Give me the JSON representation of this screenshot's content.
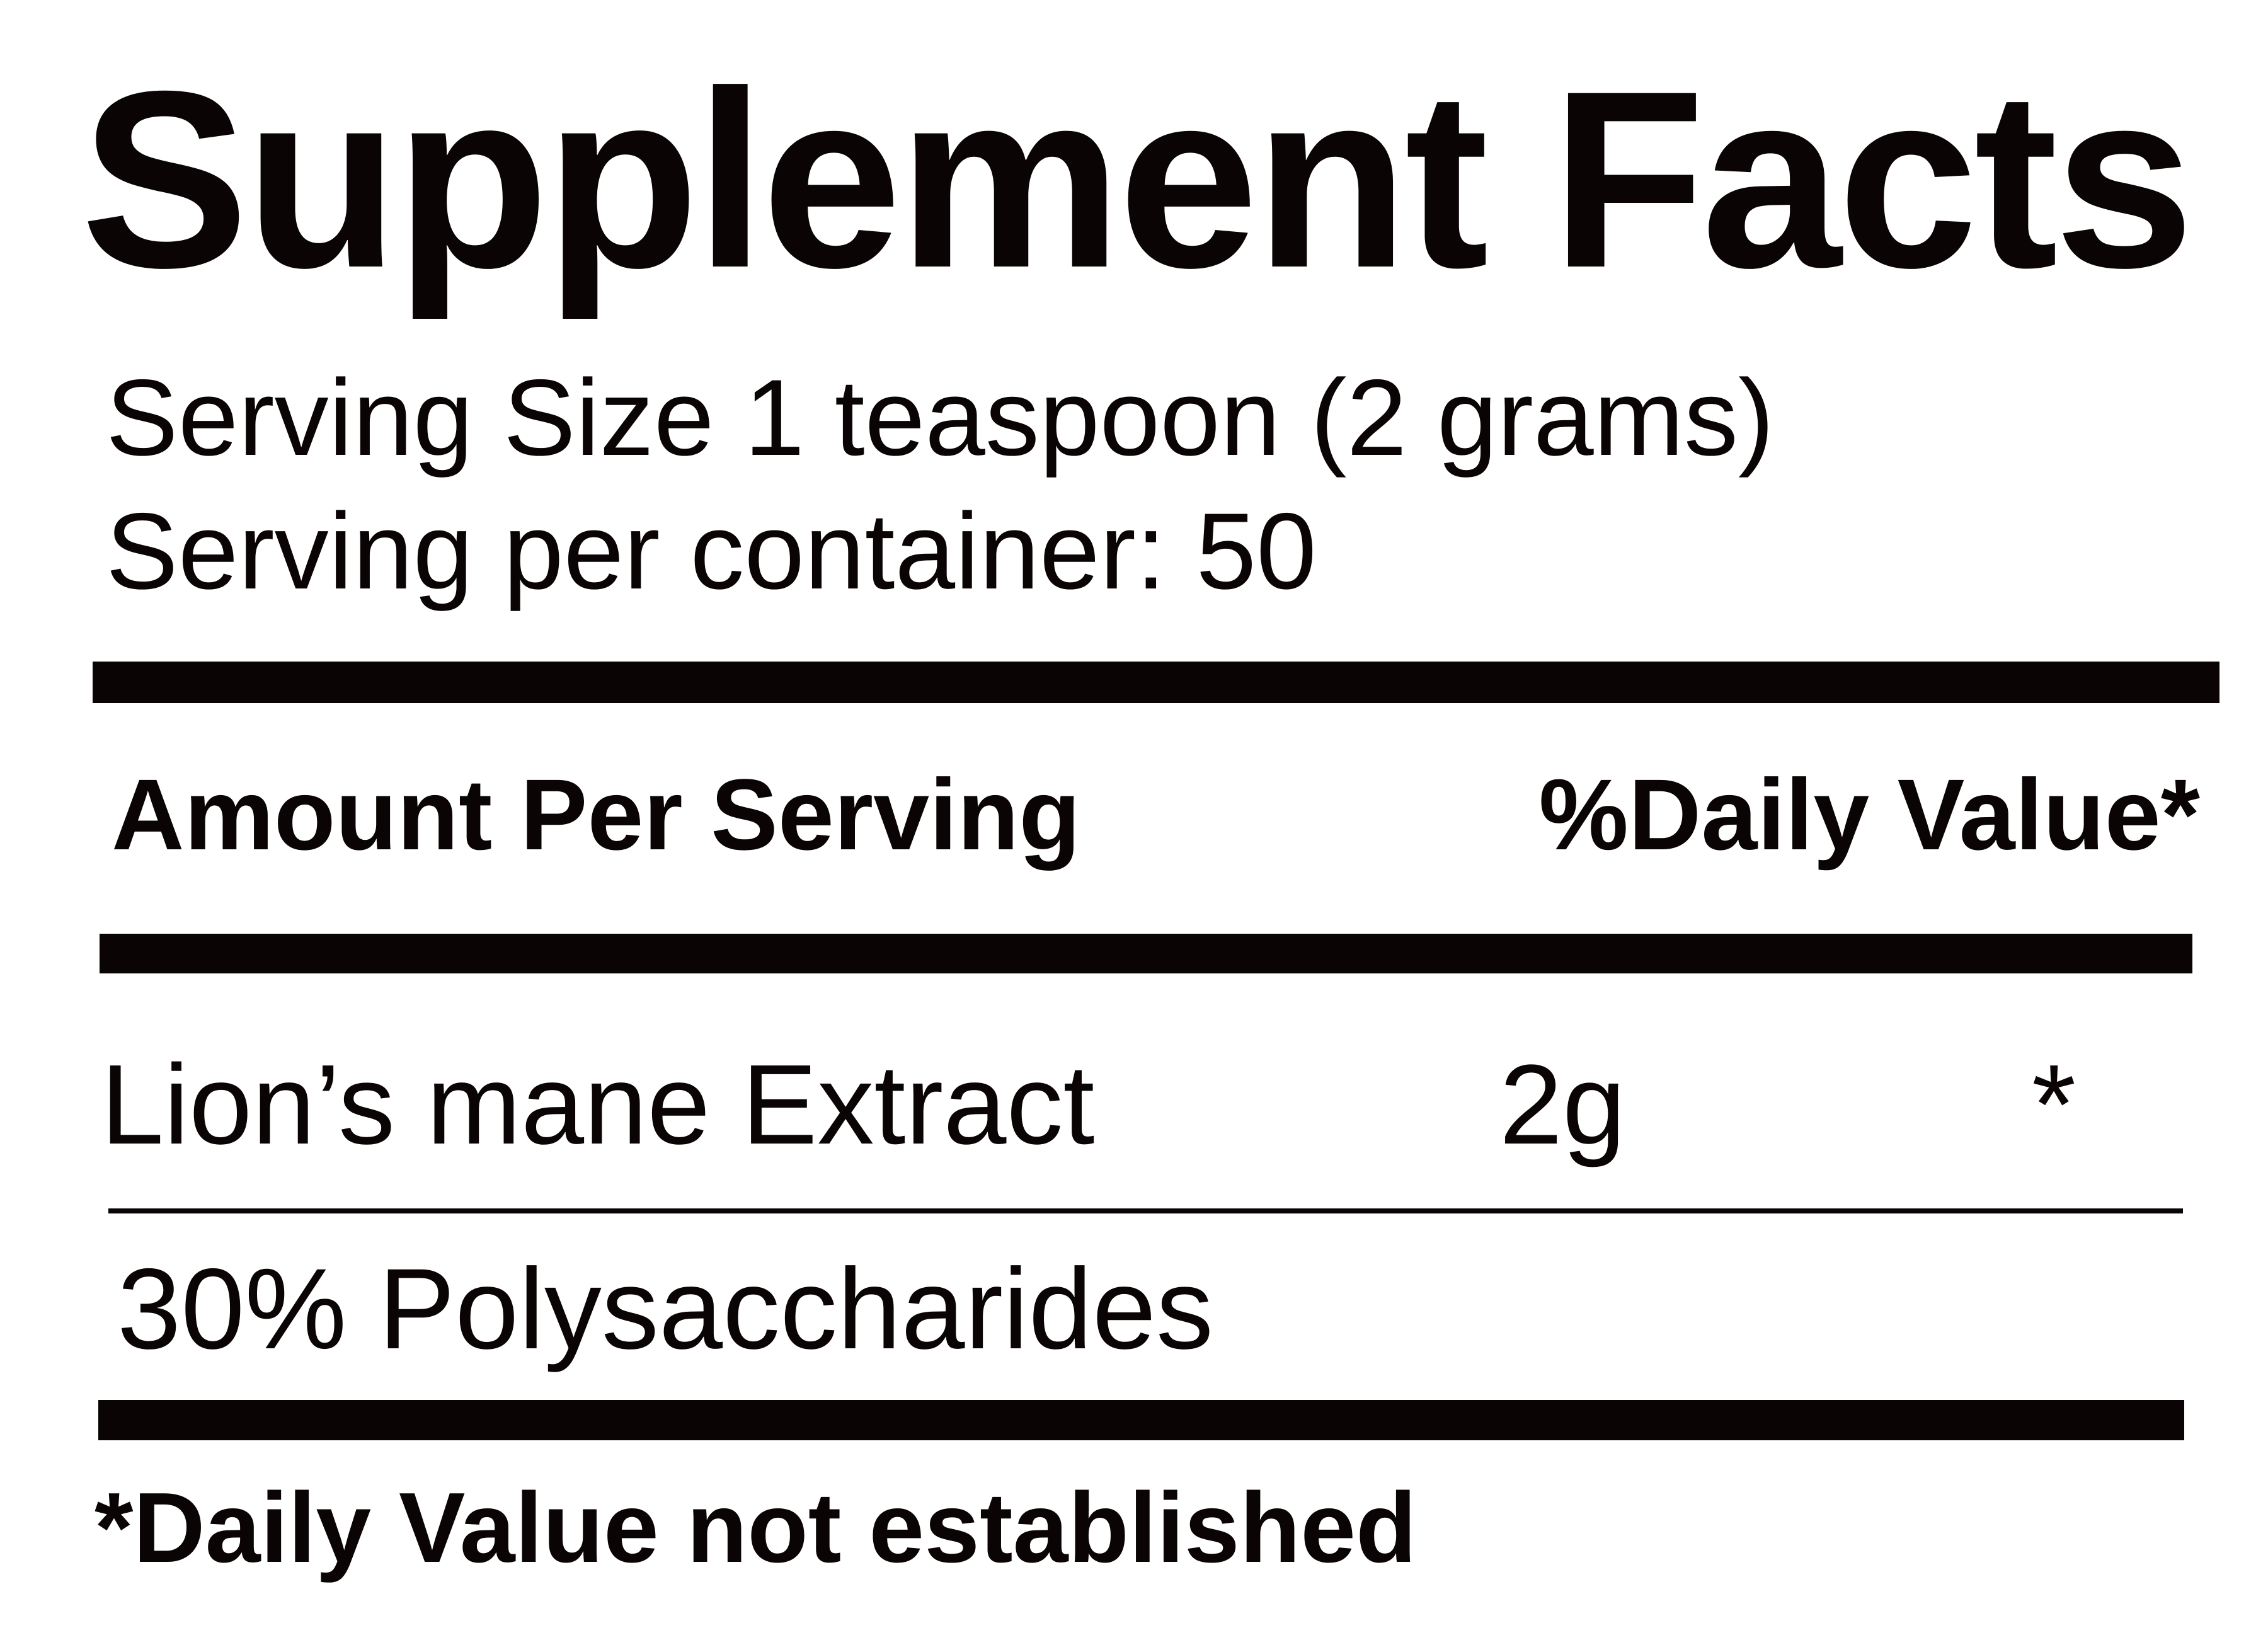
{
  "label": {
    "title": "Supplement Facts",
    "serving_size_line": "Serving Size 1 teaspoon (2 grams)",
    "servings_per_container_line": "Serving per container: 50",
    "column_headers": {
      "amount": "Amount Per Serving",
      "daily_value": "%Daily Value*"
    },
    "rows": [
      {
        "name": "Lion’s mane Extract",
        "amount": "2g",
        "daily_value": "*",
        "detail": "30% Polysaccharides"
      }
    ],
    "footnote": "*Daily Value not established",
    "colors": {
      "ink": "#0a0504",
      "background": "#ffffff"
    }
  }
}
